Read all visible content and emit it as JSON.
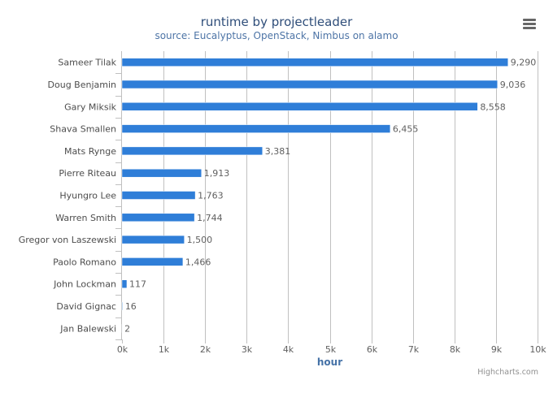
{
  "title": "runtime by projectleader",
  "subtitle": "source: Eucalyptus, OpenStack, Nimbus on alamo",
  "menu_icon": "hamburger-menu-icon",
  "credits": "Highcharts.com",
  "colors": {
    "bar": "#2f7ed8",
    "title": "#2f4e7a",
    "subtitle": "#4d74a6",
    "axis_title": "#4572a7",
    "grid": "#c0c0c0"
  },
  "chart_data": {
    "type": "bar",
    "orientation": "horizontal",
    "title": "runtime by projectleader",
    "subtitle": "source: Eucalyptus, OpenStack, Nimbus on alamo",
    "xlabel": "hour",
    "ylabel": "",
    "categories": [
      "Sameer Tilak",
      "Doug Benjamin",
      "Gary Miksik",
      "Shava Smallen",
      "Mats Rynge",
      "Pierre Riteau",
      "Hyungro Lee",
      "Warren Smith",
      "Gregor von Laszewski",
      "Paolo Romano",
      "John Lockman",
      "David Gignac",
      "Jan Balewski"
    ],
    "values": [
      9290,
      9036,
      8558,
      6455,
      3381,
      1913,
      1763,
      1744,
      1500,
      1466,
      117,
      16,
      2
    ],
    "data_labels": [
      "9,290",
      "9,036",
      "8,558",
      "6,455",
      "3,381",
      "1,913",
      "1,763",
      "1,744",
      "1,500",
      "1,466",
      "117",
      "16",
      "2"
    ],
    "xlim": [
      0,
      10000
    ],
    "ticks": [
      0,
      1000,
      2000,
      3000,
      4000,
      5000,
      6000,
      7000,
      8000,
      9000,
      10000
    ],
    "tick_labels": [
      "0k",
      "1k",
      "2k",
      "3k",
      "4k",
      "5k",
      "6k",
      "7k",
      "8k",
      "9k",
      "10k"
    ],
    "grid": true,
    "legend": "none"
  }
}
